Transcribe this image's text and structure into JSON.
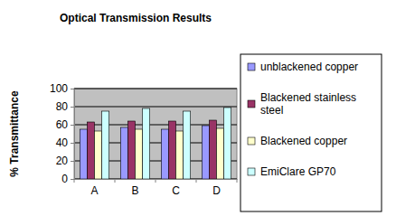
{
  "chart_data": {
    "type": "bar",
    "title": "Optical Transmission Results",
    "y_label": "% Transmittance",
    "categories": [
      "A",
      "B",
      "C",
      "D"
    ],
    "series": [
      {
        "name": "unblackened copper",
        "color": "#9999ff",
        "values": [
          55,
          57,
          55,
          59
        ]
      },
      {
        "name": "Blackened stainless steel",
        "color": "#993366",
        "values": [
          63,
          64,
          64,
          65
        ]
      },
      {
        "name": "Blackened copper",
        "color": "#ffffcc",
        "values": [
          53,
          55,
          53,
          56
        ]
      },
      {
        "name": "EmiClare GP70",
        "color": "#ccffff",
        "values": [
          75,
          78,
          75,
          79
        ]
      }
    ],
    "ylim": [
      0,
      100
    ],
    "yticks": [
      0,
      20,
      40,
      60,
      80,
      100
    ],
    "grid": true,
    "legend": "right"
  }
}
